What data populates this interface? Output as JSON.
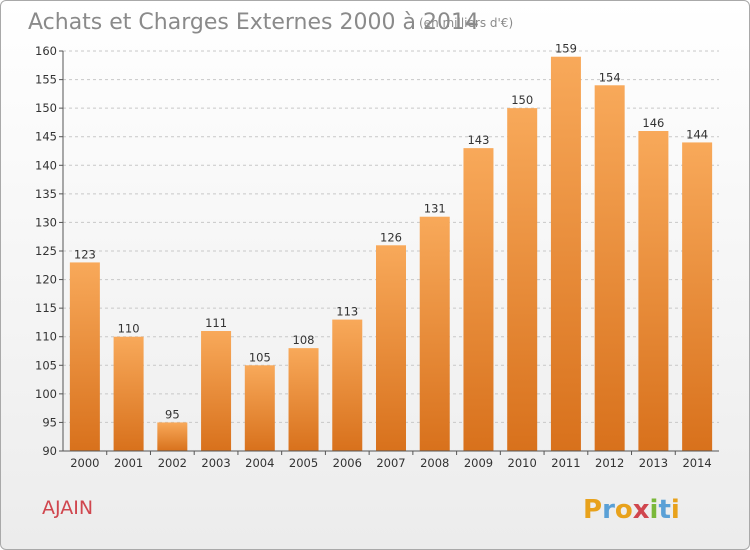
{
  "chart_data": {
    "type": "bar",
    "title": "Achats et Charges Externes 2000 à 2014",
    "subtitle": "(en milliers d'€)",
    "xlabel": "",
    "ylabel": "",
    "categories": [
      "2000",
      "2001",
      "2002",
      "2003",
      "2004",
      "2005",
      "2006",
      "2007",
      "2008",
      "2009",
      "2010",
      "2011",
      "2012",
      "2013",
      "2014"
    ],
    "values": [
      123,
      110,
      95,
      111,
      105,
      108,
      113,
      126,
      131,
      143,
      150,
      159,
      154,
      146,
      144
    ],
    "ylim": [
      90,
      160
    ],
    "yticks": [
      90,
      95,
      100,
      105,
      110,
      115,
      120,
      125,
      130,
      135,
      140,
      145,
      150,
      155,
      160
    ],
    "grid": true,
    "legend": "none",
    "colors": {
      "bar_top": "#f8a95a",
      "bar_bottom": "#d8711c",
      "grid": "#c8c8c8",
      "axis": "#555555",
      "text": "#333333",
      "title": "#8a8a8a",
      "commune": "#d0464e"
    }
  },
  "commune": "AJAIN",
  "logo": {
    "letters": [
      "P",
      "r",
      "o",
      "x",
      "i",
      "t",
      "i"
    ],
    "colors": [
      "#e8a21c",
      "#5aa0d6",
      "#e8a21c",
      "#d0464e",
      "#7ab83a",
      "#5aa0d6",
      "#e8a21c"
    ]
  }
}
